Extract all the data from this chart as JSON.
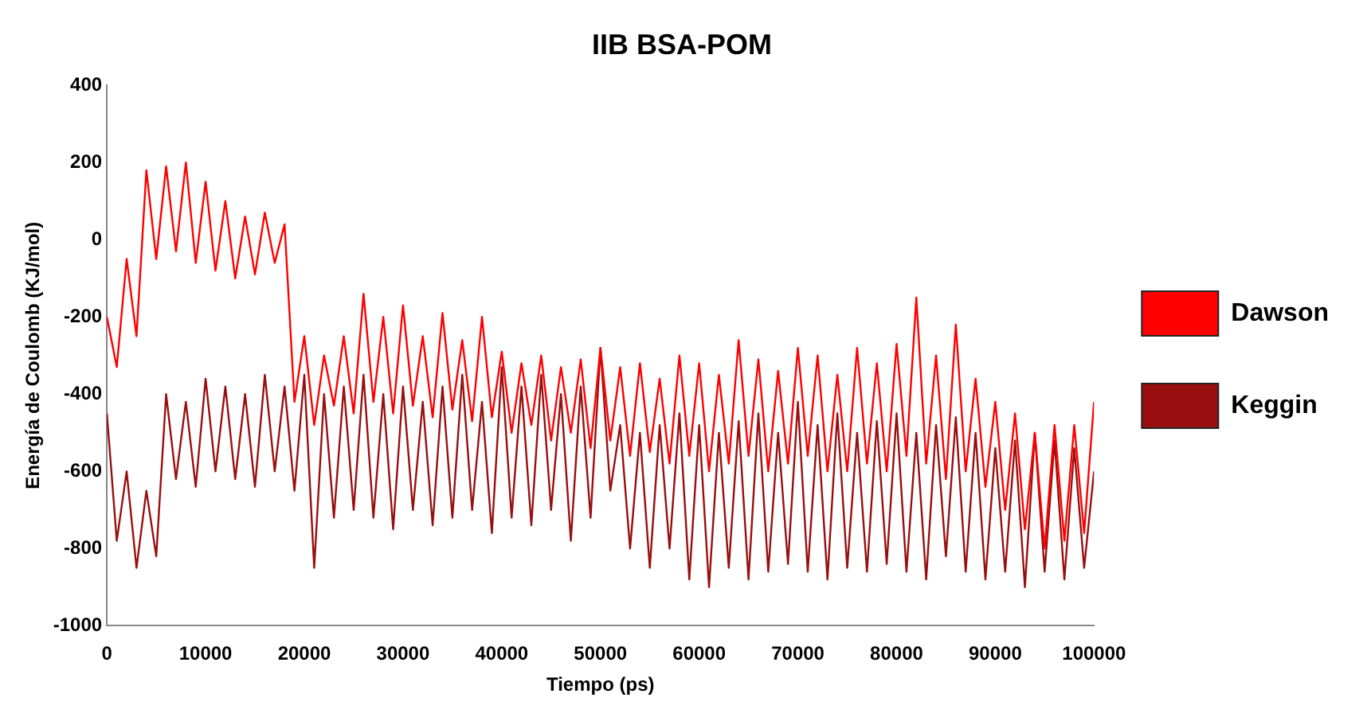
{
  "chart_data": {
    "type": "line",
    "title": "IIB BSA-POM",
    "xlabel": "Tiempo (ps)",
    "ylabel": "Energía de Coulomb (KJ/mol)",
    "x": [
      0,
      1000,
      2000,
      3000,
      4000,
      5000,
      6000,
      7000,
      8000,
      9000,
      10000,
      11000,
      12000,
      13000,
      14000,
      15000,
      16000,
      17000,
      18000,
      19000,
      20000,
      21000,
      22000,
      23000,
      24000,
      25000,
      26000,
      27000,
      28000,
      29000,
      30000,
      31000,
      32000,
      33000,
      34000,
      35000,
      36000,
      37000,
      38000,
      39000,
      40000,
      41000,
      42000,
      43000,
      44000,
      45000,
      46000,
      47000,
      48000,
      49000,
      50000,
      51000,
      52000,
      53000,
      54000,
      55000,
      56000,
      57000,
      58000,
      59000,
      60000,
      61000,
      62000,
      63000,
      64000,
      65000,
      66000,
      67000,
      68000,
      69000,
      70000,
      71000,
      72000,
      73000,
      74000,
      75000,
      76000,
      77000,
      78000,
      79000,
      80000,
      81000,
      82000,
      83000,
      84000,
      85000,
      86000,
      87000,
      88000,
      89000,
      90000,
      91000,
      92000,
      93000,
      94000,
      95000,
      96000,
      97000,
      98000,
      99000,
      100000
    ],
    "series": [
      {
        "name": "Dawson",
        "color": "#ff0000",
        "values": [
          -200,
          -330,
          -50,
          -250,
          180,
          -50,
          190,
          -30,
          200,
          -60,
          150,
          -80,
          100,
          -100,
          60,
          -90,
          70,
          -60,
          40,
          -420,
          -250,
          -480,
          -300,
          -430,
          -250,
          -450,
          -140,
          -420,
          -200,
          -450,
          -170,
          -430,
          -250,
          -460,
          -190,
          -440,
          -260,
          -470,
          -200,
          -460,
          -290,
          -500,
          -320,
          -480,
          -300,
          -520,
          -330,
          -500,
          -310,
          -540,
          -280,
          -520,
          -330,
          -560,
          -320,
          -550,
          -360,
          -580,
          -300,
          -560,
          -320,
          -600,
          -350,
          -580,
          -260,
          -560,
          -310,
          -600,
          -340,
          -580,
          -280,
          -560,
          -300,
          -600,
          -350,
          -600,
          -280,
          -580,
          -320,
          -600,
          -270,
          -560,
          -150,
          -580,
          -300,
          -620,
          -220,
          -600,
          -360,
          -640,
          -420,
          -700,
          -450,
          -750,
          -500,
          -800,
          -480,
          -780,
          -480,
          -760,
          -420
        ]
      },
      {
        "name": "Keggin",
        "color": "#990f0f",
        "values": [
          -450,
          -780,
          -600,
          -850,
          -650,
          -820,
          -400,
          -620,
          -420,
          -640,
          -360,
          -600,
          -380,
          -620,
          -400,
          -640,
          -350,
          -600,
          -380,
          -650,
          -350,
          -850,
          -400,
          -720,
          -380,
          -700,
          -350,
          -720,
          -400,
          -750,
          -380,
          -700,
          -420,
          -740,
          -380,
          -720,
          -350,
          -700,
          -420,
          -760,
          -330,
          -720,
          -380,
          -740,
          -350,
          -700,
          -400,
          -780,
          -380,
          -720,
          -280,
          -650,
          -480,
          -800,
          -500,
          -850,
          -480,
          -800,
          -450,
          -880,
          -480,
          -900,
          -500,
          -850,
          -470,
          -880,
          -450,
          -860,
          -500,
          -840,
          -420,
          -860,
          -480,
          -880,
          -450,
          -850,
          -500,
          -860,
          -470,
          -840,
          -450,
          -860,
          -500,
          -880,
          -480,
          -820,
          -460,
          -860,
          -500,
          -880,
          -540,
          -860,
          -520,
          -900,
          -500,
          -860,
          -520,
          -880,
          -540,
          -850,
          -600
        ]
      }
    ],
    "xlim": [
      0,
      100000
    ],
    "xticks": [
      0,
      10000,
      20000,
      30000,
      40000,
      50000,
      60000,
      70000,
      80000,
      90000,
      100000
    ],
    "ylim": [
      -1000,
      400
    ],
    "yticks": [
      -1000,
      -800,
      -600,
      -400,
      -200,
      0,
      200,
      400
    ],
    "grid": false,
    "legend": "right",
    "marker": "none",
    "line_style": "solid"
  }
}
